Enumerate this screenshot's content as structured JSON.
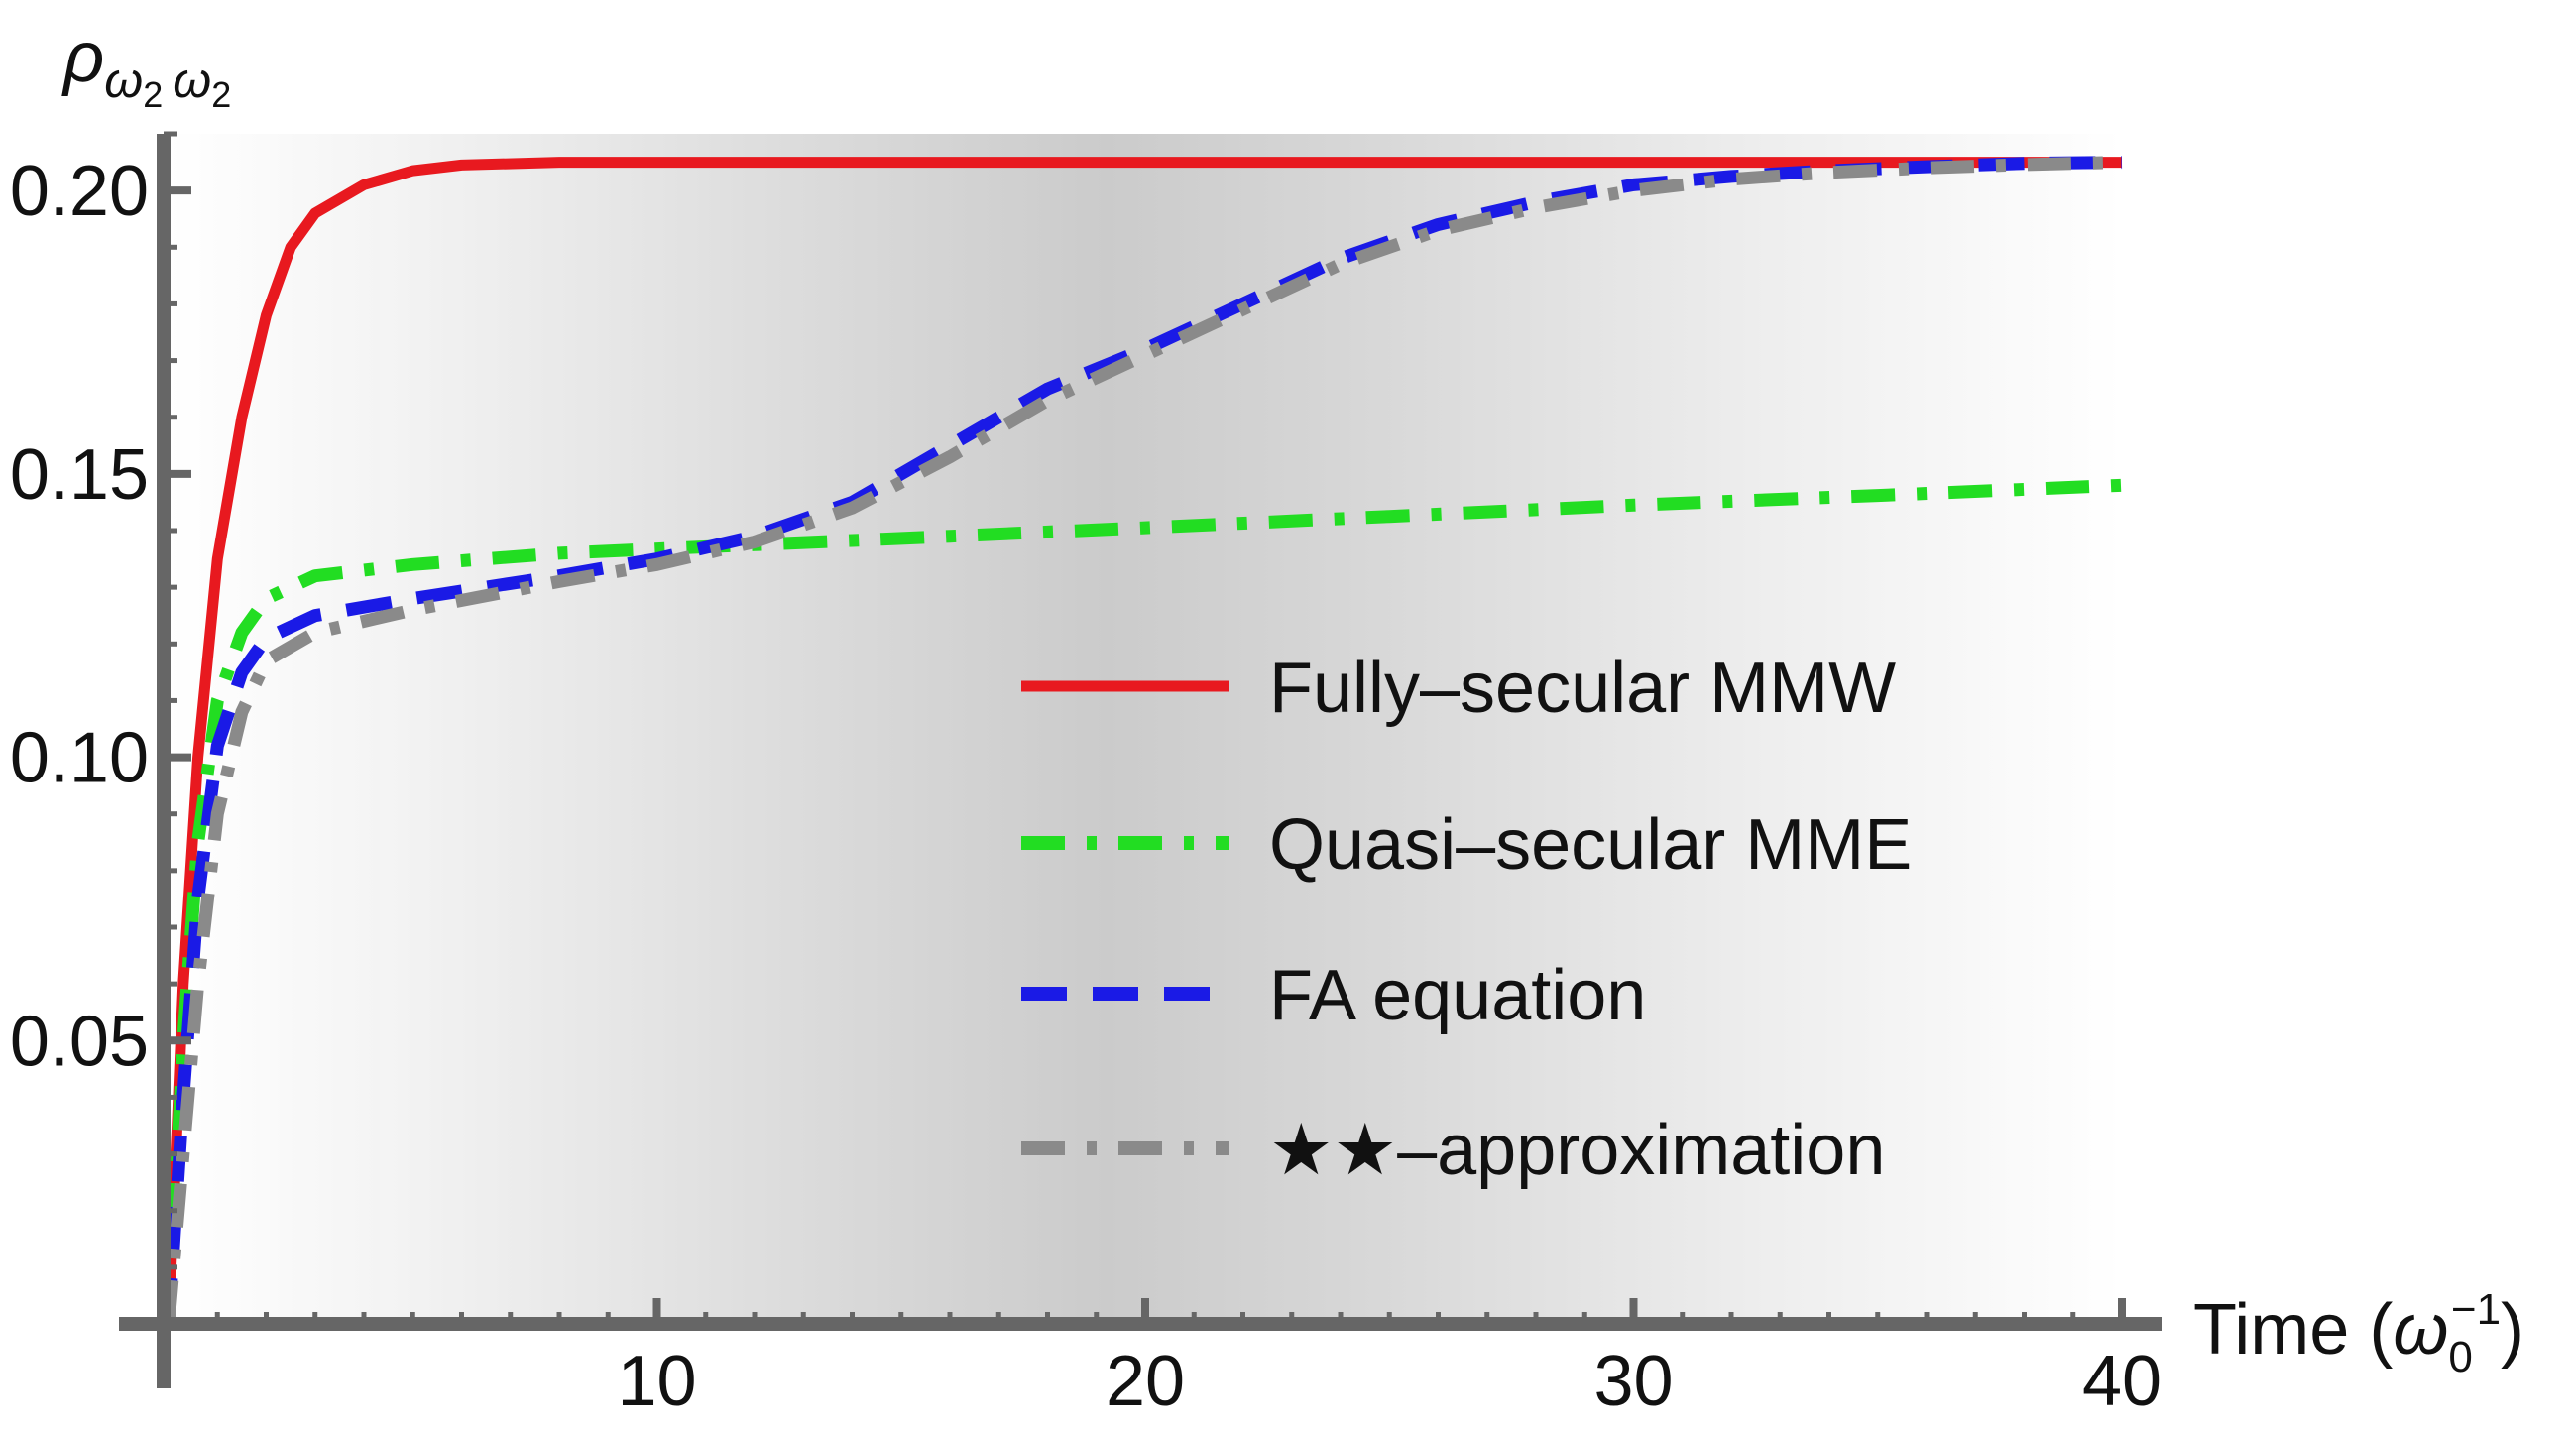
{
  "chart_data": {
    "type": "line",
    "title": "",
    "ylabel_parts": {
      "symbol": "ρ",
      "sub1": "ω",
      "sub1_index": "2",
      "sub2": "ω",
      "sub2_index": "2"
    },
    "xlabel_parts": {
      "prefix": "Time (",
      "symbol": "ω",
      "sub": "0",
      "sup": "−1",
      "suffix": ")"
    },
    "xlim": [
      0,
      40
    ],
    "ylim": [
      0,
      0.21
    ],
    "x_ticks": [
      10,
      20,
      30,
      40
    ],
    "y_ticks": [
      0.05,
      0.1,
      0.15,
      0.2
    ],
    "x_tick_labels": [
      "10",
      "20",
      "30",
      "40"
    ],
    "y_tick_labels": [
      "0.05",
      "0.10",
      "0.15",
      "0.20"
    ],
    "legend_position": "center-right",
    "series": [
      {
        "name": "Fully–secular MMW",
        "color": "#e8191f",
        "style": "solid",
        "x": [
          0,
          0.3,
          0.6,
          1.0,
          1.5,
          2.0,
          2.5,
          3.0,
          4.0,
          5.0,
          6.0,
          8.0,
          10,
          20,
          30,
          40
        ],
        "y": [
          0.0,
          0.06,
          0.1,
          0.135,
          0.16,
          0.178,
          0.19,
          0.196,
          0.201,
          0.2035,
          0.2045,
          0.205,
          0.205,
          0.205,
          0.205,
          0.205
        ]
      },
      {
        "name": "Quasi–secular MME",
        "color": "#22dd22",
        "style": "dashdot",
        "x": [
          0,
          0.3,
          0.6,
          1.0,
          1.5,
          2.0,
          3.0,
          5.0,
          8.0,
          12,
          16,
          20,
          25,
          30,
          35,
          40
        ],
        "y": [
          0.0,
          0.05,
          0.085,
          0.11,
          0.122,
          0.128,
          0.132,
          0.134,
          0.136,
          0.1375,
          0.139,
          0.1405,
          0.1425,
          0.1445,
          0.1462,
          0.148
        ]
      },
      {
        "name": "FA equation",
        "color": "#1a1ae6",
        "style": "dashed",
        "x": [
          0,
          0.3,
          0.6,
          1.0,
          1.5,
          2.0,
          3.0,
          5.0,
          8.0,
          10,
          12,
          14,
          16,
          18,
          20,
          22,
          24,
          26,
          28,
          30,
          32,
          34,
          36,
          38,
          40
        ],
        "y": [
          0.0,
          0.04,
          0.075,
          0.102,
          0.115,
          0.121,
          0.125,
          0.128,
          0.132,
          0.135,
          0.139,
          0.145,
          0.155,
          0.165,
          0.172,
          0.18,
          0.188,
          0.194,
          0.198,
          0.201,
          0.2025,
          0.2035,
          0.2042,
          0.2048,
          0.205
        ]
      },
      {
        "name": "★★–approximation",
        "color": "#8a8a8a",
        "style": "dashdot",
        "x": [
          0,
          0.3,
          0.6,
          1.0,
          1.5,
          2.0,
          3.0,
          5.0,
          8.0,
          10,
          12,
          14,
          16,
          18,
          20,
          22,
          24,
          26,
          28,
          30,
          32,
          34,
          36,
          38,
          40
        ],
        "y": [
          0.0,
          0.03,
          0.06,
          0.09,
          0.108,
          0.117,
          0.122,
          0.126,
          0.131,
          0.134,
          0.138,
          0.144,
          0.153,
          0.163,
          0.171,
          0.179,
          0.187,
          0.193,
          0.197,
          0.2,
          0.202,
          0.2032,
          0.204,
          0.2046,
          0.205
        ]
      }
    ]
  }
}
